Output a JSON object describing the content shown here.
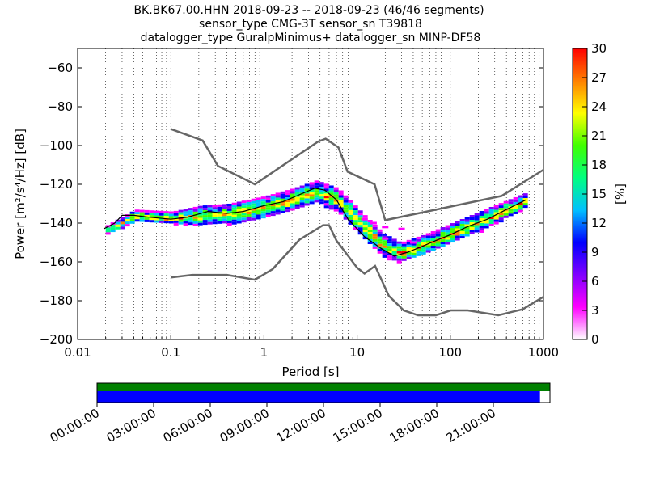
{
  "chart_data": {
    "type": "heatmap",
    "title_lines": [
      "BK.BK67.00.HHN   2018-09-23 -- 2018-09-23  (46/46 segments)",
      "sensor_type CMG-3T sensor_sn T39818",
      "datalogger_type GuralpMinimus+ datalogger_sn MINP-DF58"
    ],
    "xlabel": "Period [s]",
    "ylabel": "Power [m²/s⁴/Hz] [dB]",
    "xscale": "log",
    "xlim": [
      0.01,
      1000
    ],
    "ylim": [
      -200,
      -50
    ],
    "x_ticks": [
      {
        "v": 0.01,
        "label": "0.01"
      },
      {
        "v": 0.1,
        "label": "0.1"
      },
      {
        "v": 1,
        "label": "1"
      },
      {
        "v": 10,
        "label": "10"
      },
      {
        "v": 100,
        "label": "100"
      },
      {
        "v": 1000,
        "label": "1000"
      }
    ],
    "y_ticks": [
      {
        "v": -60,
        "label": "−60"
      },
      {
        "v": -80,
        "label": "−80"
      },
      {
        "v": -100,
        "label": "−100"
      },
      {
        "v": -120,
        "label": "−120"
      },
      {
        "v": -140,
        "label": "−140"
      },
      {
        "v": -160,
        "label": "−160"
      },
      {
        "v": -180,
        "label": "−180"
      },
      {
        "v": -200,
        "label": "−200"
      }
    ],
    "grid": "dotted-vertical",
    "colorbar": {
      "label": "[%]",
      "range": [
        0,
        30
      ],
      "ticks": [
        {
          "v": 0,
          "label": "0"
        },
        {
          "v": 3,
          "label": "3"
        },
        {
          "v": 6,
          "label": "6"
        },
        {
          "v": 9,
          "label": "9"
        },
        {
          "v": 12,
          "label": "12"
        },
        {
          "v": 15,
          "label": "15"
        },
        {
          "v": 18,
          "label": "18"
        },
        {
          "v": 21,
          "label": "21"
        },
        {
          "v": 24,
          "label": "24"
        },
        {
          "v": 27,
          "label": "27"
        },
        {
          "v": 30,
          "label": "30"
        }
      ],
      "colors": [
        "#ffffff",
        "#ff00ff",
        "#8000ff",
        "#0000ff",
        "#00c0ff",
        "#00ff80",
        "#40ff00",
        "#ffff00",
        "#ff8000",
        "#ff0000"
      ]
    },
    "nhnm": [
      [
        0.1,
        -91.5
      ],
      [
        0.22,
        -97.4
      ],
      [
        0.32,
        -110.5
      ],
      [
        0.8,
        -120
      ],
      [
        3.8,
        -98
      ],
      [
        4.6,
        -96.5
      ],
      [
        6.3,
        -101
      ],
      [
        7.9,
        -113.5
      ],
      [
        15.4,
        -120
      ],
      [
        20,
        -138.5
      ],
      [
        354.8,
        -126
      ],
      [
        1000,
        -112.5
      ]
    ],
    "nlnm": [
      [
        0.1,
        -168
      ],
      [
        0.17,
        -166.7
      ],
      [
        0.4,
        -166.7
      ],
      [
        0.8,
        -169.2
      ],
      [
        1.24,
        -163.7
      ],
      [
        2.4,
        -148.6
      ],
      [
        4.3,
        -141.1
      ],
      [
        5,
        -141.1
      ],
      [
        6,
        -149
      ],
      [
        10,
        -163
      ],
      [
        12,
        -166
      ],
      [
        15.6,
        -162.1
      ],
      [
        21.9,
        -177.5
      ],
      [
        31.6,
        -185
      ],
      [
        45,
        -187.5
      ],
      [
        70,
        -187.5
      ],
      [
        101,
        -185
      ],
      [
        154,
        -185
      ],
      [
        328,
        -187.5
      ],
      [
        600,
        -184.4
      ],
      [
        1000,
        -178
      ]
    ],
    "mean": [
      [
        0.019,
        -143
      ],
      [
        0.025,
        -140
      ],
      [
        0.03,
        -136
      ],
      [
        0.04,
        -136
      ],
      [
        0.06,
        -137
      ],
      [
        0.1,
        -138
      ],
      [
        0.15,
        -137
      ],
      [
        0.25,
        -134
      ],
      [
        0.4,
        -135
      ],
      [
        0.6,
        -134
      ],
      [
        1,
        -131
      ],
      [
        1.6,
        -129
      ],
      [
        2.5,
        -125
      ],
      [
        3.5,
        -122
      ],
      [
        4.5,
        -123
      ],
      [
        6,
        -128
      ],
      [
        8,
        -138
      ],
      [
        12,
        -147
      ],
      [
        18,
        -153
      ],
      [
        25,
        -157
      ],
      [
        35,
        -155
      ],
      [
        50,
        -152
      ],
      [
        70,
        -149
      ],
      [
        100,
        -146
      ],
      [
        150,
        -142
      ],
      [
        250,
        -138
      ],
      [
        400,
        -133
      ],
      [
        650,
        -128
      ]
    ],
    "spread": [
      {
        "x": 0.02,
        "lo": -145,
        "hi": -141
      },
      {
        "x": 0.04,
        "lo": -139,
        "hi": -133
      },
      {
        "x": 0.1,
        "lo": -140,
        "hi": -134
      },
      {
        "x": 0.2,
        "lo": -141,
        "hi": -131
      },
      {
        "x": 0.4,
        "lo": -140,
        "hi": -130
      },
      {
        "x": 1,
        "lo": -137,
        "hi": -126
      },
      {
        "x": 2,
        "lo": -133,
        "hi": -122
      },
      {
        "x": 3.5,
        "lo": -129,
        "hi": -118
      },
      {
        "x": 6,
        "lo": -134,
        "hi": -122
      },
      {
        "x": 10,
        "lo": -145,
        "hi": -133
      },
      {
        "x": 18,
        "lo": -157,
        "hi": -145
      },
      {
        "x": 28,
        "lo": -160,
        "hi": -150
      },
      {
        "x": 50,
        "lo": -156,
        "hi": -146
      },
      {
        "x": 100,
        "lo": -150,
        "hi": -140
      },
      {
        "x": 250,
        "lo": -142,
        "hi": -132
      },
      {
        "x": 650,
        "lo": -131,
        "hi": -124
      }
    ],
    "outliers": [
      {
        "x": 12,
        "y": -138
      },
      {
        "x": 15,
        "y": -140
      },
      {
        "x": 20,
        "y": -142
      },
      {
        "x": 30,
        "y": -143
      },
      {
        "x": 20,
        "y": -148
      },
      {
        "x": 40,
        "y": -150
      }
    ]
  },
  "timeline": {
    "ticks": [
      "00:00:00",
      "03:00:00",
      "06:00:00",
      "09:00:00",
      "12:00:00",
      "15:00:00",
      "18:00:00",
      "21:00:00"
    ],
    "data_fraction": 1.0,
    "psd_fraction": 0.978,
    "data_color": "#008000",
    "psd_color": "#0000ff"
  }
}
